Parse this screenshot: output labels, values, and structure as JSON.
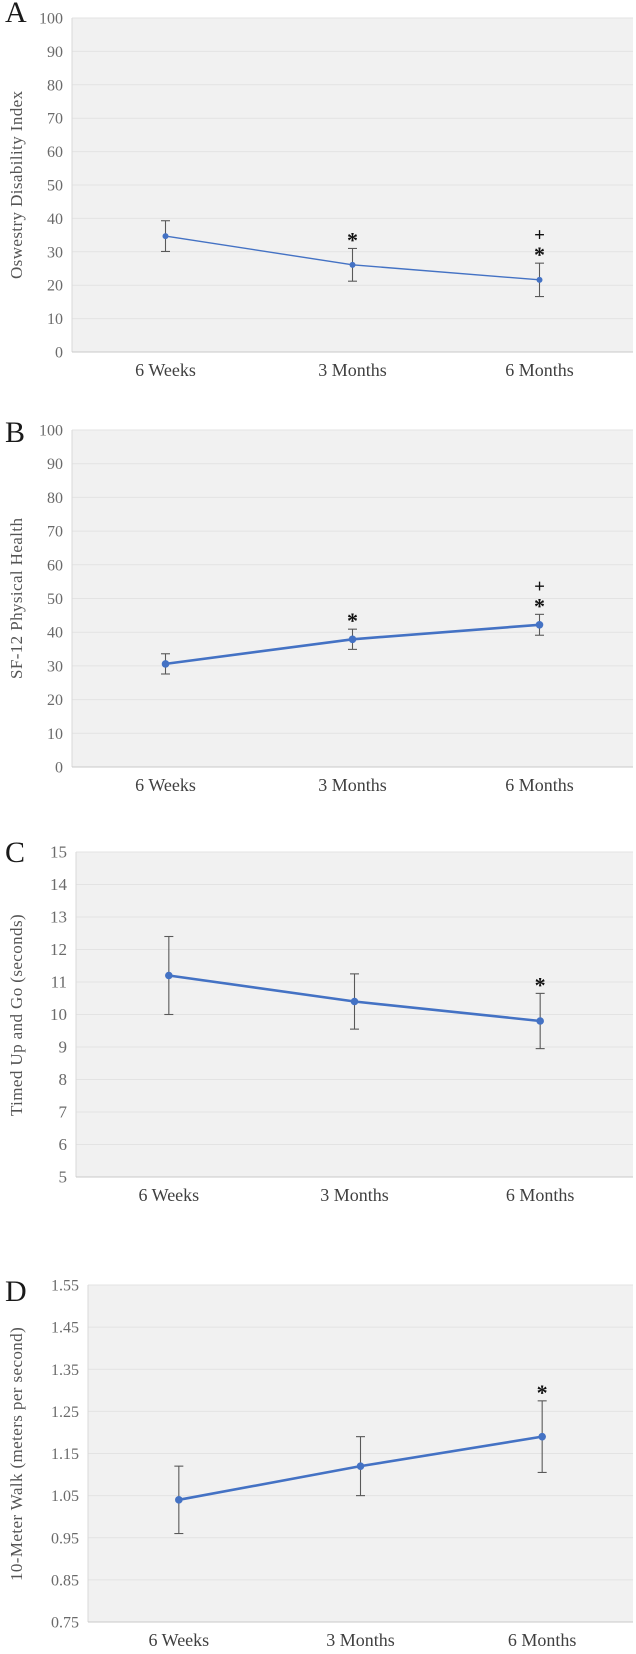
{
  "figure": {
    "panel_letters": [
      "A",
      "B",
      "C",
      "D"
    ],
    "categories": [
      "6 Weeks",
      "3 Months",
      "6 Months"
    ]
  },
  "colors": {
    "line": "#4472C4",
    "marker": "#4472C4",
    "error_bar": "#595959",
    "plot_bg": "#F1F1F1",
    "gridline": "#E3E3E3",
    "axis_line": "#C9C9C9",
    "tick_label": "#6A6A6A",
    "category_label": "#404040",
    "panel_letter": "#1A1A1A",
    "annotation": "#111111"
  },
  "chart_data": [
    {
      "type": "line",
      "panel_label": "A",
      "ylabel": "Oswestry Disability Index",
      "xlabel": "",
      "categories": [
        "6 Weeks",
        "3 Months",
        "6 Months"
      ],
      "series": [
        {
          "name": "Oswestry Disability Index mean",
          "values": [
            34.7,
            26.1,
            21.6
          ],
          "error": [
            4.6,
            4.9,
            5.0
          ]
        }
      ],
      "ylim": [
        0,
        100
      ],
      "yticks": [
        0,
        10,
        20,
        30,
        40,
        50,
        60,
        70,
        80,
        90,
        100
      ],
      "grid": true,
      "legend": false,
      "annotations": [
        {
          "category": "3 Months",
          "symbols": [
            "*"
          ]
        },
        {
          "category": "6 Months",
          "symbols": [
            "+",
            "*"
          ]
        }
      ]
    },
    {
      "type": "line",
      "panel_label": "B",
      "ylabel": "SF-12 Physical  Health",
      "xlabel": "",
      "categories": [
        "6 Weeks",
        "3 Months",
        "6 Months"
      ],
      "series": [
        {
          "name": "SF-12 Physical Health mean",
          "values": [
            30.6,
            37.9,
            42.2
          ],
          "error": [
            3.0,
            3.0,
            3.1
          ]
        }
      ],
      "ylim": [
        0,
        100
      ],
      "yticks": [
        0,
        10,
        20,
        30,
        40,
        50,
        60,
        70,
        80,
        90,
        100
      ],
      "grid": true,
      "legend": false,
      "annotations": [
        {
          "category": "3 Months",
          "symbols": [
            "*"
          ]
        },
        {
          "category": "6 Months",
          "symbols": [
            "+",
            "*"
          ]
        }
      ]
    },
    {
      "type": "line",
      "panel_label": "C",
      "ylabel": "Timed Up and Go (seconds)",
      "xlabel": "",
      "categories": [
        "6 Weeks",
        "3 Months",
        "6 Months"
      ],
      "series": [
        {
          "name": "Timed Up and Go mean",
          "values": [
            11.2,
            10.4,
            9.8
          ],
          "error": [
            1.2,
            0.85,
            0.85
          ]
        }
      ],
      "ylim": [
        5,
        15
      ],
      "yticks": [
        5,
        6,
        7,
        8,
        9,
        10,
        11,
        12,
        13,
        14,
        15
      ],
      "grid": true,
      "legend": false,
      "annotations": [
        {
          "category": "6 Months",
          "symbols": [
            "*"
          ]
        }
      ]
    },
    {
      "type": "line",
      "panel_label": "D",
      "ylabel": "10-Meter Walk (meters per second)",
      "xlabel": "",
      "categories": [
        "6 Weeks",
        "3 Months",
        "6 Months"
      ],
      "series": [
        {
          "name": "10-Meter Walk mean",
          "values": [
            1.04,
            1.12,
            1.19
          ],
          "error": [
            0.08,
            0.07,
            0.085
          ]
        }
      ],
      "ylim": [
        0.75,
        1.55
      ],
      "yticks": [
        0.75,
        0.85,
        0.95,
        1.05,
        1.15,
        1.25,
        1.35,
        1.45,
        1.55
      ],
      "grid": true,
      "legend": false,
      "annotations": [
        {
          "category": "6 Months",
          "symbols": [
            "*"
          ]
        }
      ]
    }
  ]
}
